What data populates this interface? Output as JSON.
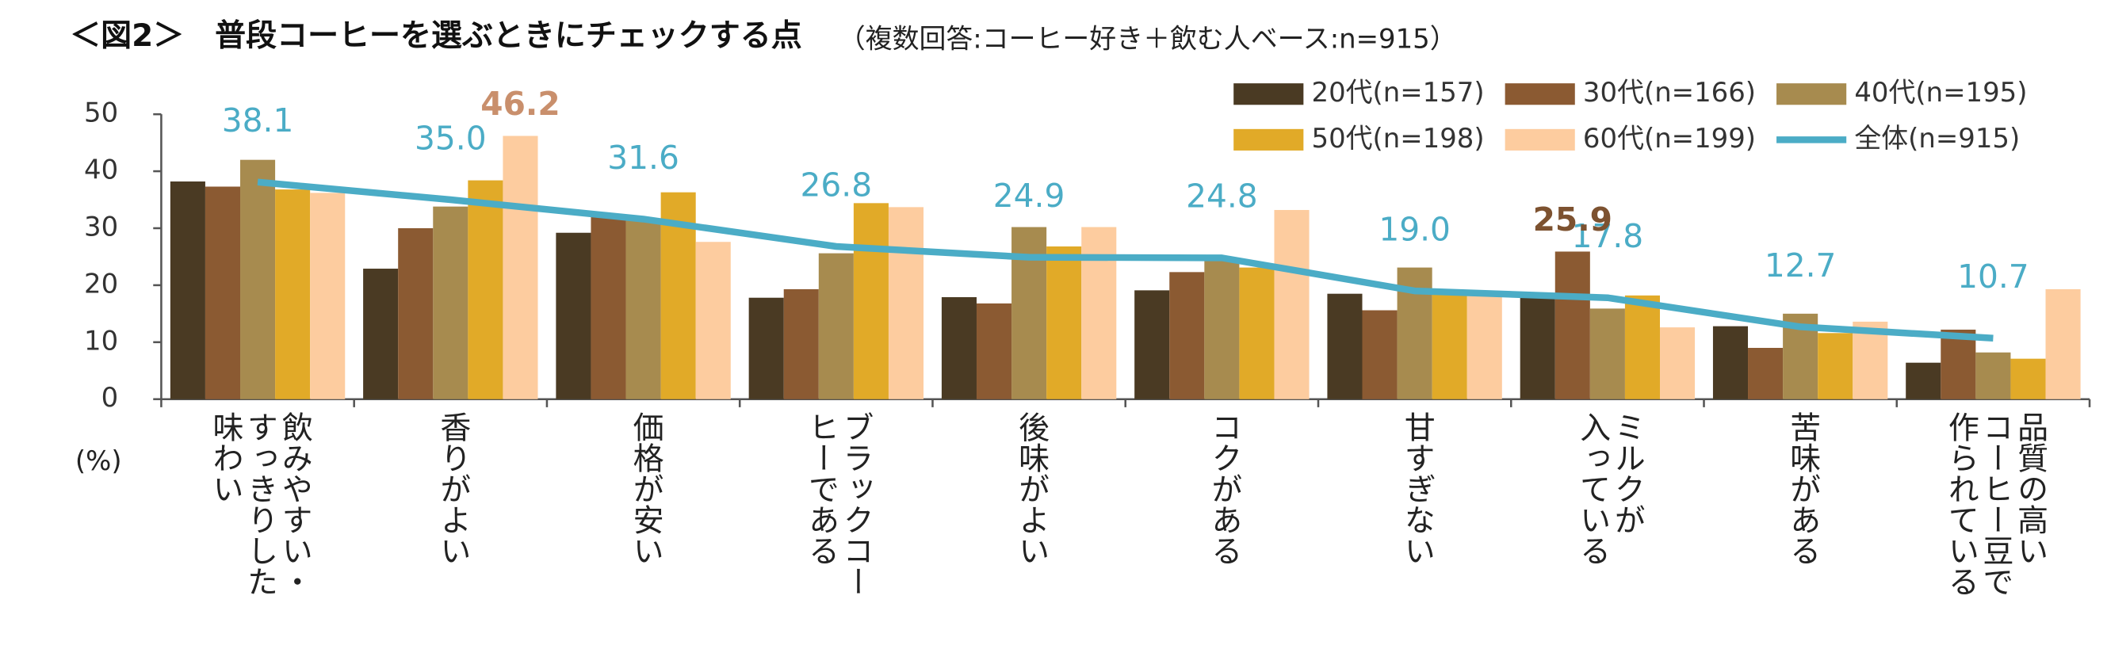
{
  "chart_data": {
    "type": "bar",
    "title": "＜図2＞　普段コーヒーを選ぶときにチェックする点",
    "subtitle": "（複数回答:コーヒー好き＋飲む人ベース:n=915）",
    "y_label": "(%)",
    "categories": [
      "飲みやすい・\nすっきりした\n味わい",
      "香りがよい",
      "価格が安い",
      "ブラックコー\nヒーである",
      "後味がよい",
      "コクがある",
      "甘すぎない",
      "ミルクが\n入っている",
      "苦味がある",
      "品質の高い\nコーヒー豆で\n作られている"
    ],
    "series": [
      {
        "name": "20代(n=157)",
        "color": "#4a3a23",
        "values": [
          38.2,
          22.9,
          29.2,
          17.8,
          17.9,
          19.1,
          18.5,
          17.8,
          12.8,
          6.4
        ]
      },
      {
        "name": "30代(n=166)",
        "color": "#8b5a32",
        "values": [
          37.3,
          30.0,
          32.0,
          19.3,
          16.8,
          22.3,
          15.6,
          25.9,
          9.0,
          12.2
        ]
      },
      {
        "name": "40代(n=195)",
        "color": "#a78b4f",
        "values": [
          42.0,
          33.8,
          31.5,
          25.6,
          30.2,
          24.6,
          23.1,
          15.9,
          15.0,
          8.2
        ]
      },
      {
        "name": "50代(n=198)",
        "color": "#e1aa28",
        "values": [
          36.8,
          38.4,
          36.3,
          34.4,
          26.8,
          23.1,
          19.0,
          18.2,
          11.6,
          7.1
        ]
      },
      {
        "name": "60代(n=199)",
        "color": "#fdcc9f",
        "values": [
          36.2,
          46.2,
          27.6,
          33.7,
          30.2,
          33.2,
          18.1,
          12.6,
          13.6,
          19.3
        ]
      },
      {
        "name": "全体(n=915)",
        "color": "#4bacc6",
        "type": "line",
        "values": [
          38.1,
          35.0,
          31.6,
          26.8,
          24.9,
          24.8,
          19.0,
          17.8,
          12.7,
          10.7
        ],
        "value_labels": [
          "38.1",
          "35.0",
          "31.6",
          "26.8",
          "24.9",
          "24.8",
          "19.0",
          "17.8",
          "12.7",
          "10.7"
        ]
      }
    ],
    "highlight_labels": [
      {
        "series": 4,
        "category": 1,
        "color": "#c98f6c",
        "label": "46.2"
      },
      {
        "series": 1,
        "category": 7,
        "color": "#7d5230",
        "label": "25.9"
      }
    ],
    "ylim": [
      0,
      50
    ],
    "yticks": [
      0,
      10,
      20,
      30,
      40,
      50
    ],
    "legend": "top-right"
  }
}
